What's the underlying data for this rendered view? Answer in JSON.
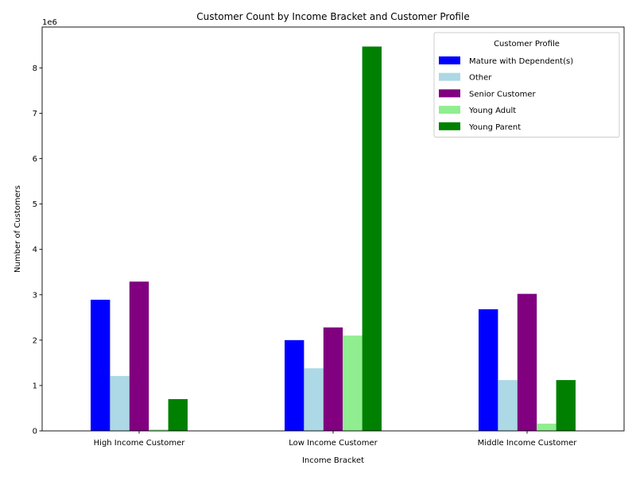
{
  "chart_data": {
    "type": "bar",
    "title": "Customer Count by Income Bracket and Customer Profile",
    "xlabel": "Income Bracket",
    "ylabel": "Number of Customers",
    "offset_text": "1e6",
    "categories": [
      "High Income Customer",
      "Low Income Customer",
      "Middle Income Customer"
    ],
    "ylim": [
      0,
      8900000
    ],
    "yticks": [
      0,
      1000000,
      2000000,
      3000000,
      4000000,
      5000000,
      6000000,
      7000000,
      8000000
    ],
    "ytick_labels": [
      "0",
      "1",
      "2",
      "3",
      "4",
      "5",
      "6",
      "7",
      "8"
    ],
    "legend_title": "Customer Profile",
    "legend_position": "top-right",
    "grid": false,
    "series": [
      {
        "name": "Mature with Dependent(s)",
        "color": "#0000ff",
        "values": [
          2890000,
          2000000,
          2680000
        ]
      },
      {
        "name": "Other",
        "color": "#add8e6",
        "values": [
          1210000,
          1380000,
          1120000
        ]
      },
      {
        "name": "Senior Customer",
        "color": "#800080",
        "values": [
          3290000,
          2280000,
          3020000
        ]
      },
      {
        "name": "Young Adult",
        "color": "#90ee90",
        "values": [
          30000,
          2100000,
          160000
        ]
      },
      {
        "name": "Young Parent",
        "color": "#008000",
        "values": [
          700000,
          8470000,
          1120000
        ]
      }
    ]
  }
}
